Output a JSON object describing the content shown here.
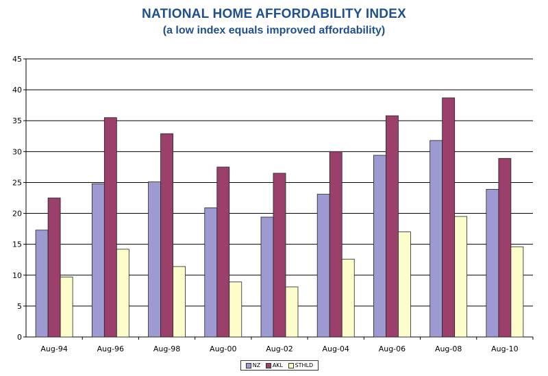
{
  "header": {
    "title": "NATIONAL HOME AFFORDABILITY INDEX",
    "subtitle": "(a low index equals improved affordability)"
  },
  "colors": {
    "NZ": "#9c9ad0",
    "AKL": "#9b3f6b",
    "STHLD": "#fdfccb",
    "bar_stroke": "#222222",
    "grid": "#000000",
    "title": "#1f4f8f"
  },
  "legend": {
    "position": "bottom-center",
    "items": [
      {
        "label": "NZ",
        "color": "#9c9ad0"
      },
      {
        "label": "AKL",
        "color": "#9b3f6b"
      },
      {
        "label": "STHLD",
        "color": "#fdfccb"
      }
    ]
  },
  "chart_data": {
    "type": "bar",
    "title": "NATIONAL HOME AFFORDABILITY INDEX",
    "subtitle": "(a low index equals improved affordability)",
    "xlabel": "",
    "ylabel": "",
    "ylim": [
      0,
      45
    ],
    "yticks": [
      0,
      5,
      10,
      15,
      20,
      25,
      30,
      35,
      40,
      45
    ],
    "grid": true,
    "categories": [
      "Aug-94",
      "Aug-96",
      "Aug-98",
      "Aug-00",
      "Aug-02",
      "Aug-04",
      "Aug-06",
      "Aug-08",
      "Aug-10"
    ],
    "series": [
      {
        "name": "NZ",
        "values": [
          17.3,
          24.8,
          25.1,
          20.9,
          19.4,
          23.1,
          29.4,
          31.8,
          23.9
        ]
      },
      {
        "name": "AKL",
        "values": [
          22.5,
          35.5,
          32.9,
          27.5,
          26.5,
          30.0,
          35.8,
          38.7,
          28.9
        ]
      },
      {
        "name": "STHLD",
        "values": [
          9.7,
          14.2,
          11.4,
          8.9,
          8.1,
          12.6,
          17.0,
          19.5,
          14.6
        ]
      }
    ]
  }
}
